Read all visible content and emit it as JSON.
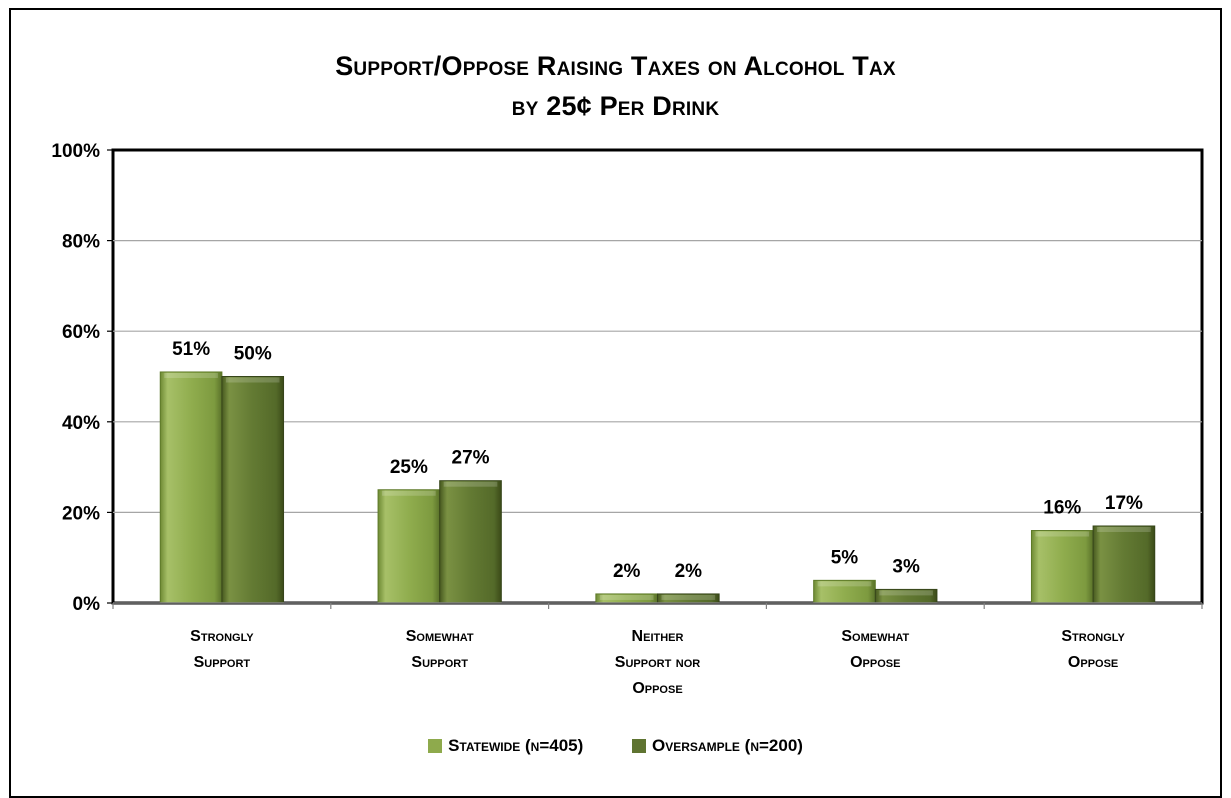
{
  "chart_data": {
    "type": "bar",
    "title_lines": [
      "Support/Oppose Raising Taxes on Alcohol Tax",
      "by 25¢ Per Drink"
    ],
    "categories": [
      [
        "Strongly",
        "Support"
      ],
      [
        "Somewhat",
        "Support"
      ],
      [
        "Neither",
        "Support nor",
        "Oppose"
      ],
      [
        "Somewhat",
        "Oppose"
      ],
      [
        "Strongly",
        "Oppose"
      ]
    ],
    "series": [
      {
        "name": "Statewide (n=405)",
        "values": [
          51,
          25,
          2,
          5,
          16
        ],
        "labels": [
          "51%",
          "25%",
          "2%",
          "5%",
          "16%"
        ],
        "color": "#8eaa4c"
      },
      {
        "name": "Oversample (n=200)",
        "values": [
          50,
          27,
          2,
          3,
          17
        ],
        "labels": [
          "50%",
          "27%",
          "2%",
          "3%",
          "17%"
        ],
        "color": "#5f7431"
      }
    ],
    "ylim": [
      0,
      100
    ],
    "yticks": [
      "0%",
      "20%",
      "40%",
      "60%",
      "80%",
      "100%"
    ],
    "grid": true,
    "legend_position": "bottom"
  }
}
